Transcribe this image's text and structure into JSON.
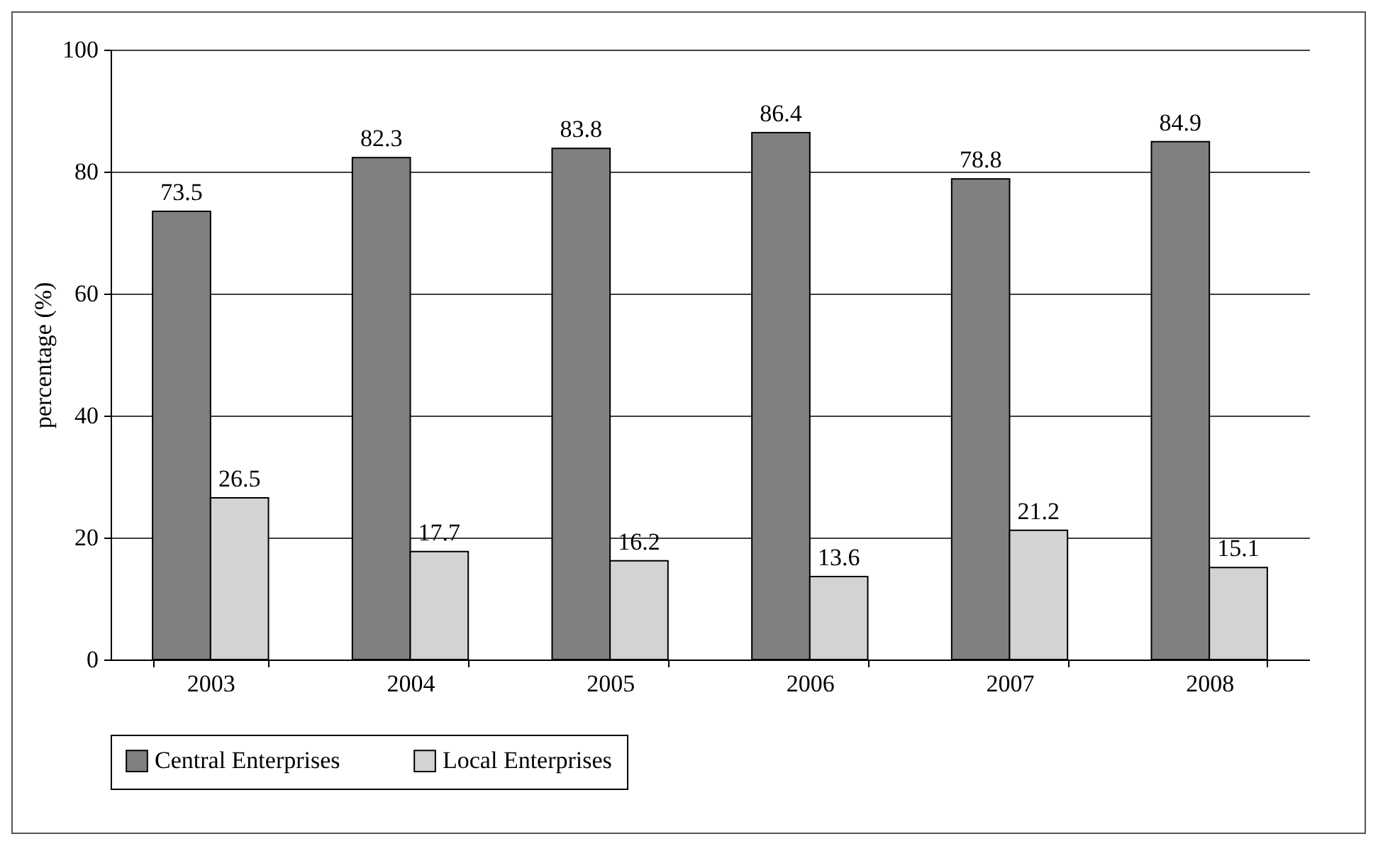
{
  "chart_data": {
    "type": "bar",
    "ylabel": "percentage (%)",
    "categories": [
      "2003",
      "2004",
      "2005",
      "2006",
      "2007",
      "2008"
    ],
    "series": [
      {
        "name": "Central Enterprises",
        "color": "#808080",
        "values": [
          73.5,
          82.3,
          83.8,
          86.4,
          78.8,
          84.9
        ]
      },
      {
        "name": "Local Enterprises",
        "color": "#d3d3d3",
        "values": [
          26.5,
          17.7,
          16.2,
          13.6,
          21.2,
          15.1
        ]
      }
    ],
    "ylim": [
      0,
      100
    ],
    "yticks": [
      0,
      20,
      40,
      60,
      80,
      100
    ],
    "grid": "y",
    "legend": "bottom",
    "data_labels": true
  }
}
